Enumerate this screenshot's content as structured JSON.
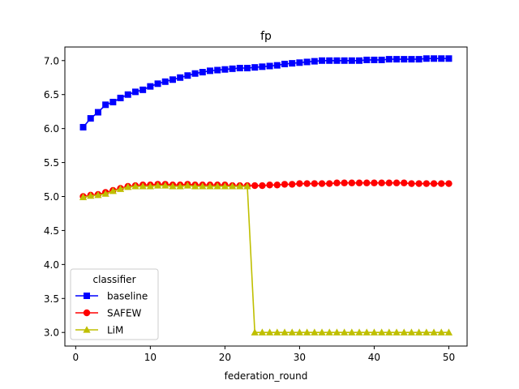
{
  "chart_data": {
    "type": "line",
    "title": "fp",
    "xlabel": "federation_round",
    "ylabel": "",
    "xlim": [
      -1.45,
      52.45
    ],
    "ylim": [
      2.8,
      7.2
    ],
    "xticks": [
      0,
      10,
      20,
      30,
      40,
      50
    ],
    "xtick_labels": [
      "0",
      "10",
      "20",
      "30",
      "40",
      "50"
    ],
    "yticks": [
      3.0,
      3.5,
      4.0,
      4.5,
      5.0,
      5.5,
      6.0,
      6.5,
      7.0
    ],
    "ytick_labels": [
      "3.0",
      "3.5",
      "4.0",
      "4.5",
      "5.0",
      "5.5",
      "6.0",
      "6.5",
      "7.0"
    ],
    "grid": false,
    "legend": {
      "title": "classifier",
      "position": "lower-left"
    },
    "x": [
      1,
      2,
      3,
      4,
      5,
      6,
      7,
      8,
      9,
      10,
      11,
      12,
      13,
      14,
      15,
      16,
      17,
      18,
      19,
      20,
      21,
      22,
      23,
      24,
      25,
      26,
      27,
      28,
      29,
      30,
      31,
      32,
      33,
      34,
      35,
      36,
      37,
      38,
      39,
      40,
      41,
      42,
      43,
      44,
      45,
      46,
      47,
      48,
      49,
      50
    ],
    "series": [
      {
        "name": "baseline",
        "color": "#0000ff",
        "marker": "square",
        "values": [
          6.02,
          6.15,
          6.24,
          6.35,
          6.39,
          6.45,
          6.5,
          6.54,
          6.57,
          6.62,
          6.66,
          6.69,
          6.72,
          6.75,
          6.78,
          6.81,
          6.83,
          6.85,
          6.86,
          6.87,
          6.88,
          6.89,
          6.89,
          6.9,
          6.91,
          6.92,
          6.93,
          6.95,
          6.96,
          6.97,
          6.98,
          6.99,
          7.0,
          7.0,
          7.0,
          7.0,
          7.0,
          7.0,
          7.01,
          7.01,
          7.01,
          7.02,
          7.02,
          7.02,
          7.02,
          7.02,
          7.03,
          7.03,
          7.03,
          7.03
        ]
      },
      {
        "name": "SAFEW",
        "color": "#ff0000",
        "marker": "circle",
        "values": [
          5.0,
          5.02,
          5.03,
          5.06,
          5.09,
          5.12,
          5.15,
          5.16,
          5.17,
          5.17,
          5.18,
          5.18,
          5.17,
          5.17,
          5.18,
          5.17,
          5.17,
          5.17,
          5.17,
          5.17,
          5.16,
          5.16,
          5.16,
          5.16,
          5.16,
          5.17,
          5.17,
          5.18,
          5.18,
          5.19,
          5.19,
          5.19,
          5.19,
          5.19,
          5.2,
          5.2,
          5.2,
          5.2,
          5.2,
          5.2,
          5.2,
          5.2,
          5.2,
          5.2,
          5.19,
          5.19,
          5.19,
          5.19,
          5.19,
          5.19
        ]
      },
      {
        "name": "LiM",
        "color": "#bfbf00",
        "marker": "triangle",
        "values": [
          4.99,
          5.01,
          5.02,
          5.04,
          5.08,
          5.11,
          5.14,
          5.15,
          5.15,
          5.15,
          5.16,
          5.16,
          5.15,
          5.15,
          5.16,
          5.15,
          5.15,
          5.15,
          5.15,
          5.15,
          5.15,
          5.15,
          5.15,
          3.0,
          3.0,
          3.0,
          3.0,
          3.0,
          3.0,
          3.0,
          3.0,
          3.0,
          3.0,
          3.0,
          3.0,
          3.0,
          3.0,
          3.0,
          3.0,
          3.0,
          3.0,
          3.0,
          3.0,
          3.0,
          3.0,
          3.0,
          3.0,
          3.0,
          3.0,
          3.0
        ]
      }
    ]
  }
}
